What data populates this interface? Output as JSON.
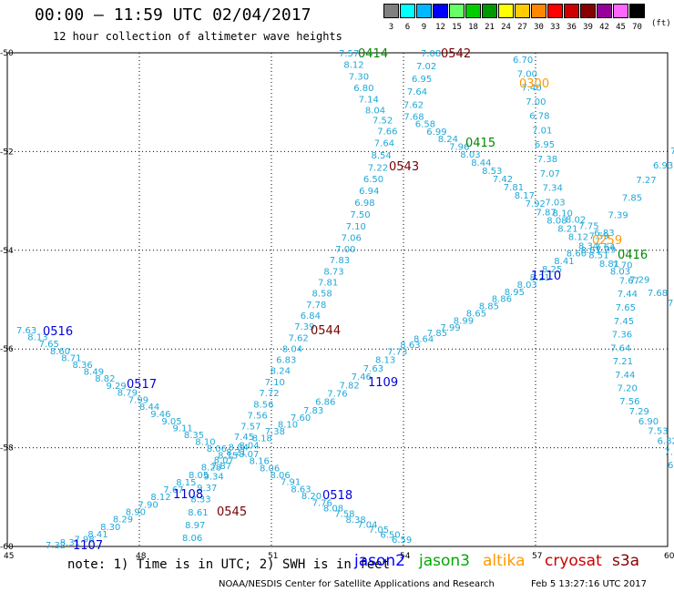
{
  "header": {
    "title": "00:00 — 11:59 UTC 02/04/2017",
    "subtitle": "12 hour collection of altimeter wave heights"
  },
  "legend": {
    "items": [
      {
        "label": "3",
        "color": "#808080"
      },
      {
        "label": "6",
        "color": "#00ffff"
      },
      {
        "label": "9",
        "color": "#00b8ff"
      },
      {
        "label": "12",
        "color": "#0000ff"
      },
      {
        "label": "15",
        "color": "#66ff66"
      },
      {
        "label": "18",
        "color": "#00cc00"
      },
      {
        "label": "21",
        "color": "#009900"
      },
      {
        "label": "24",
        "color": "#ffff00"
      },
      {
        "label": "27",
        "color": "#ffcc00"
      },
      {
        "label": "30",
        "color": "#ff8800"
      },
      {
        "label": "33",
        "color": "#ff0000"
      },
      {
        "label": "36",
        "color": "#cc0000"
      },
      {
        "label": "39",
        "color": "#880000"
      },
      {
        "label": "42",
        "color": "#990099"
      },
      {
        "label": "45",
        "color": "#ff66ff"
      },
      {
        "label": "70",
        "color": "#000000"
      }
    ],
    "unit": "(ft)"
  },
  "map": {
    "lon_ticks": [
      "45",
      "48",
      "51",
      "54",
      "57",
      "60"
    ],
    "lat_ticks": [
      "-50",
      "-52",
      "-54",
      "-56",
      "-58",
      "-60"
    ],
    "value_color": "#1fa8d8",
    "tracks": [
      {
        "name": "t1",
        "labels": [
          "7.57",
          "8.12",
          "7.30",
          "6.80",
          "7.14",
          "8.04",
          "7.52",
          "7.66",
          "7.64",
          "8.54",
          "7.22",
          "6.50",
          "6.94",
          "6.98",
          "7.50",
          "7.10",
          "7.06",
          "7.00",
          "7.83",
          "8.73",
          "7.81",
          "8.58",
          "7.78",
          "6.84",
          "7.39",
          "7.62",
          "8.04",
          "6.83",
          "8.24",
          "7.10",
          "7.72",
          "8.56",
          "7.56",
          "7.57",
          "7.45",
          "8.04",
          "8.07",
          "8.16",
          "8.06",
          "8.06",
          "7.91",
          "8.63",
          "8.20",
          "7.76",
          "8.08",
          "7.58",
          "8.38",
          "7.04",
          "7.05",
          "6.50",
          "6.59"
        ]
      },
      {
        "name": "t2",
        "labels": [
          "7.08",
          "7.02",
          "6.95",
          "7.64",
          "7.62",
          "7.68",
          "6.58",
          "6.99",
          "8.24",
          "7.96",
          "8.03",
          "8.44",
          "8.53",
          "7.42",
          "7.81",
          "8.17",
          "7.92",
          "7.87",
          "8.08",
          "8.21",
          "8.12",
          "8.34",
          "8.51",
          "8.81",
          "8.03",
          "7.67",
          "7.44",
          "7.65",
          "7.45",
          "7.36",
          "7.64",
          "7.21",
          "7.44",
          "7.20",
          "7.56",
          "7.29",
          "6.90",
          "7.53",
          "6.82",
          "7.1",
          "6.3"
        ]
      },
      {
        "name": "t3",
        "labels": [
          "6.70",
          "7.00",
          "7.40",
          "7.00",
          "6.78",
          "7.01",
          "6.95",
          "7.38",
          "7.07",
          "7.34",
          "7.03",
          "8.10",
          "8.02",
          "7.75",
          "7.59",
          "7.64",
          "8.81",
          "8.60",
          "8.41",
          "8.25",
          "8.21",
          "8.03",
          "8.95",
          "8.86",
          "8.85",
          "8.65",
          "8.99",
          "7.99",
          "7.85",
          "8.64",
          "8.63",
          "7.73",
          "8.13",
          "7.63",
          "7.46",
          "7.82",
          "7.76",
          "6.86",
          "7.83",
          "7.60",
          "8.10",
          "7.38",
          "8.18",
          "8.04",
          "8.21",
          "8.07",
          "8.28",
          "8.05",
          "8.15",
          "7.67",
          "8.12",
          "7.90",
          "8.90",
          "8.29",
          "8.30",
          "8.41",
          "7.98",
          "8.31",
          "7.32"
        ]
      },
      {
        "name": "t4",
        "labels": [
          "7.63",
          "8.13",
          "7.65",
          "8.60",
          "8.71",
          "8.36",
          "8.49",
          "8.82",
          "9.29",
          "8.79",
          "7.99",
          "8.44",
          "9.46",
          "9.05",
          "9.11",
          "8.35",
          "8.10",
          "8.06",
          "8.15",
          "7.87",
          "9.34",
          "9.37",
          "8.33",
          "8.61",
          "8.97",
          "8.06"
        ]
      },
      {
        "name": "t5",
        "labels": [
          "7.3",
          "6.93",
          "7.27",
          "7.85",
          "7.39",
          "6.83",
          "7.29",
          "7.70",
          "7.29",
          "7.68",
          "7.3"
        ]
      }
    ],
    "passes": [
      {
        "label": "0414",
        "color": "#008800"
      },
      {
        "label": "0542",
        "color": "#770000"
      },
      {
        "label": "0300",
        "color": "#ff9900"
      },
      {
        "label": "0415",
        "color": "#008800"
      },
      {
        "label": "0543",
        "color": "#770000"
      },
      {
        "label": "0259",
        "color": "#ff9900"
      },
      {
        "label": "0416",
        "color": "#008800"
      },
      {
        "label": "1110",
        "color": "#0000dd"
      },
      {
        "label": "0516",
        "color": "#0000dd"
      },
      {
        "label": "0544",
        "color": "#770000"
      },
      {
        "label": "0517",
        "color": "#0000dd"
      },
      {
        "label": "1109",
        "color": "#0000dd"
      },
      {
        "label": "1108",
        "color": "#0000dd"
      },
      {
        "label": "0518",
        "color": "#0000dd"
      },
      {
        "label": "0545",
        "color": "#770000"
      },
      {
        "label": "1107",
        "color": "#0000dd"
      }
    ]
  },
  "footer": {
    "note": "note: 1) Time is in UTC; 2) SWH is in feet",
    "satellites": [
      {
        "label": "jason2",
        "color": "#0000ff"
      },
      {
        "label": "jason3",
        "color": "#00aa00"
      },
      {
        "label": "altika",
        "color": "#ff9900"
      },
      {
        "label": "cryosat",
        "color": "#cc0000"
      },
      {
        "label": "s3a",
        "color": "#880000"
      }
    ],
    "credit": "NOAA/NESDIS Center for Satellite Applications and Research",
    "timestamp": "Feb  5 13:27:16 UTC 2017"
  }
}
